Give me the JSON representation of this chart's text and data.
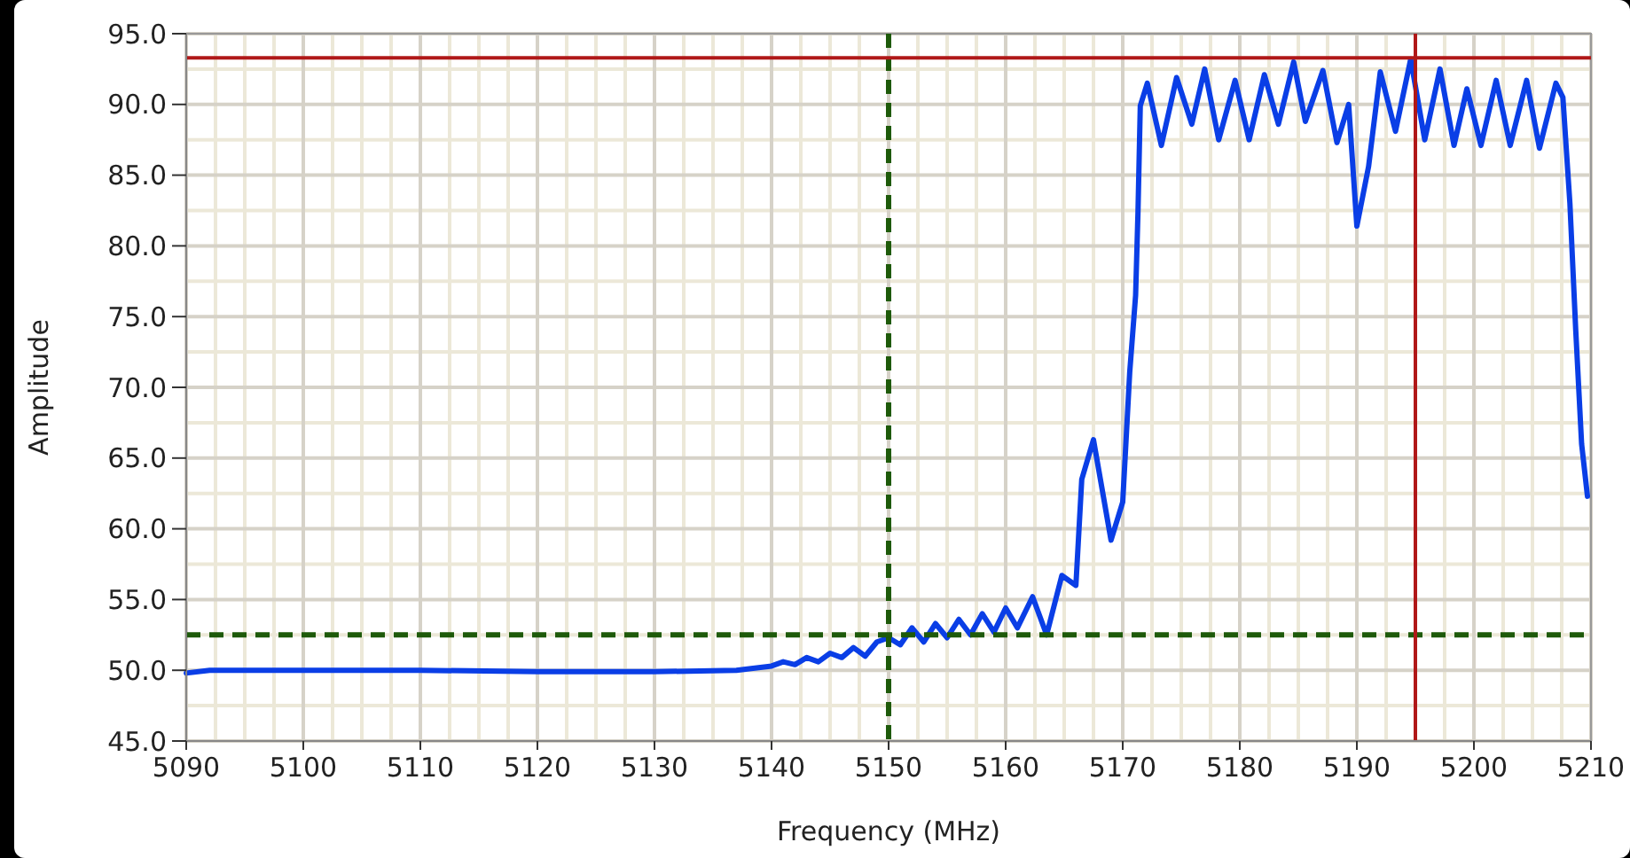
{
  "chart_data": {
    "type": "line",
    "xlabel": "Frequency (MHz)",
    "ylabel": "Amplitude",
    "xlim": [
      5090,
      5210
    ],
    "xticks": [
      5090,
      5100,
      5110,
      5120,
      5130,
      5140,
      5150,
      5160,
      5170,
      5180,
      5190,
      5200,
      5210
    ],
    "ylim": [
      45,
      95
    ],
    "yticks": [
      {
        "value": 45,
        "label": "45.0"
      },
      {
        "value": 50,
        "label": "50.0"
      },
      {
        "value": 55,
        "label": "55.0"
      },
      {
        "value": 60,
        "label": "60.0"
      },
      {
        "value": 65,
        "label": "65.0"
      },
      {
        "value": 70,
        "label": "70.0"
      },
      {
        "value": 75,
        "label": "75.0"
      },
      {
        "value": 80,
        "label": "80.0"
      },
      {
        "value": 85,
        "label": "85.0"
      },
      {
        "value": 90,
        "label": "90.0"
      },
      {
        "value": 95,
        "label": "95.0"
      }
    ],
    "grid": true,
    "line_style": "solid",
    "series": [
      {
        "color": "#0a3ee6",
        "x": [
          5090,
          5092,
          5100,
          5110,
          5120,
          5130,
          5137,
          5140,
          5141,
          5142,
          5143,
          5144,
          5145,
          5146,
          5147,
          5148,
          5149,
          5150,
          5151,
          5152,
          5153,
          5154,
          5155,
          5156,
          5157,
          5158,
          5159,
          5160,
          5161,
          5162.3,
          5163.5,
          5164.8,
          5166,
          5166.5,
          5167.5,
          5169,
          5170,
          5170.6,
          5171.1,
          5171.3,
          5171.5,
          5172.1,
          5173.3,
          5174.6,
          5175.9,
          5177,
          5178.2,
          5179.6,
          5180.8,
          5182.1,
          5183.3,
          5184.6,
          5185.6,
          5187.1,
          5188.3,
          5189.3,
          5190,
          5191,
          5192,
          5193.3,
          5194.6,
          5195.8,
          5197.1,
          5198.3,
          5199.4,
          5200.6,
          5201.9,
          5203.1,
          5204.5,
          5205.6,
          5207,
          5207.6,
          5208.2,
          5208.7,
          5209.2,
          5209.7
        ],
        "values": [
          49.8,
          50,
          50,
          50,
          49.9,
          49.9,
          50,
          50.3,
          50.6,
          50.4,
          50.9,
          50.6,
          51.2,
          50.9,
          51.6,
          51,
          52,
          52.3,
          51.8,
          53,
          52,
          53.3,
          52.3,
          53.6,
          52.5,
          54,
          52.7,
          54.4,
          53,
          55.2,
          52.5,
          56.7,
          56,
          63.5,
          66.3,
          59.2,
          61.9,
          71.1,
          76.5,
          82.3,
          89.9,
          91.5,
          87.1,
          91.9,
          88.6,
          92.5,
          87.5,
          91.7,
          87.5,
          92.1,
          88.6,
          93,
          88.8,
          92.4,
          87.3,
          90,
          81.4,
          85.6,
          92.3,
          88.1,
          93.2,
          87.5,
          92.5,
          87.1,
          91.1,
          87.1,
          91.7,
          87.1,
          91.7,
          86.9,
          91.5,
          90.5,
          83,
          74,
          66,
          62.3
        ]
      }
    ],
    "ref_lines": [
      {
        "axis": "x",
        "value": 5150,
        "color": "#1e5a0a",
        "line_style": "dashed"
      },
      {
        "axis": "y",
        "value": 52.5,
        "color": "#1e5a0a",
        "line_style": "dashed"
      },
      {
        "axis": "x",
        "value": 5195,
        "color": "#b01818",
        "line_style": "solid"
      },
      {
        "axis": "y",
        "value": 93.3,
        "color": "#b01818",
        "line_style": "solid"
      }
    ]
  }
}
